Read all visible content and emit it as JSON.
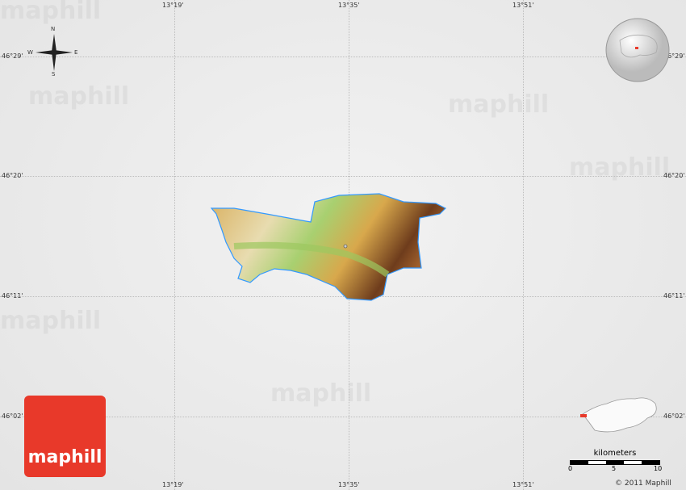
{
  "map": {
    "longitude_labels": [
      "13°19'",
      "13°35'",
      "13°51'"
    ],
    "latitude_labels": [
      "46°29'",
      "46°20'",
      "46°11'",
      "46°02'"
    ],
    "compass": {
      "north": "N",
      "south": "S",
      "east": "E",
      "west": "W"
    },
    "watermark": "maphill",
    "logo_text": "maphill",
    "scale": {
      "unit": "kilometers",
      "ticks": [
        "0",
        "5",
        "10"
      ]
    },
    "copyright": "© 2011 Maphill",
    "colors": {
      "logo": "#e8392a",
      "highlight": "#e8392a",
      "border": "#3399ff"
    }
  }
}
